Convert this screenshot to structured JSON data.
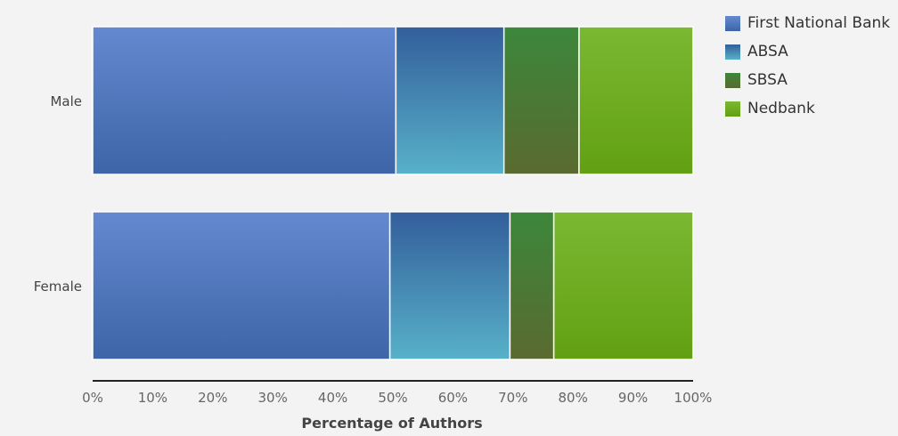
{
  "chart_data": {
    "type": "bar",
    "orientation": "horizontal",
    "stacked": "percent",
    "categories": [
      "Male",
      "Female"
    ],
    "series": [
      {
        "name": "First National Bank",
        "values": [
          50.5,
          49.5
        ],
        "color": "#4a77bd"
      },
      {
        "name": "ABSA",
        "values": [
          18,
          20
        ],
        "color": "#3b87b0"
      },
      {
        "name": "SBSA",
        "values": [
          12.5,
          7.3
        ],
        "color": "#417f37"
      },
      {
        "name": "Nedbank",
        "values": [
          19,
          23.2
        ],
        "color": "#6fab28"
      }
    ],
    "xlabel": "Percentage of Authors",
    "ylabel": "",
    "xlim": [
      0,
      100
    ],
    "xticks": [
      "0%",
      "10%",
      "20%",
      "30%",
      "40%",
      "50%",
      "60%",
      "70%",
      "80%",
      "90%",
      "100%"
    ],
    "legend_position": "top-right",
    "grid": false
  }
}
